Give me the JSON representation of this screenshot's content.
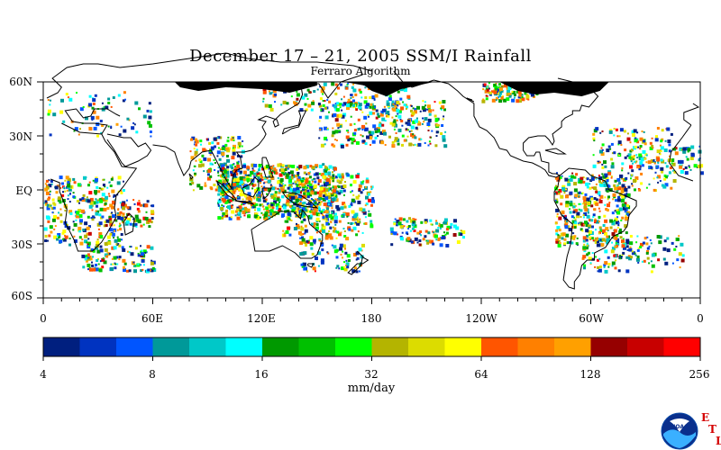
{
  "title": "December 17 – 21, 2005 SSM/I Rainfall",
  "subtitle": "Ferraro Algorithm",
  "latitude_labels": [
    "60N",
    "30N",
    "EQ",
    "30S",
    "60S"
  ],
  "longitude_labels": [
    "0",
    "60E",
    "120E",
    "180",
    "120W",
    "60W",
    "0"
  ],
  "colorbar": {
    "units": "mm/day",
    "tick_labels": [
      "4",
      "8",
      "16",
      "32",
      "64",
      "128",
      "256"
    ],
    "colors": [
      "#001f7f",
      "#0033c0",
      "#0055ff",
      "#009999",
      "#00c8c8",
      "#00ffff",
      "#009900",
      "#00c000",
      "#00ff00",
      "#b4b400",
      "#dcdc00",
      "#ffff00",
      "#ff5500",
      "#ff8000",
      "#ffa000",
      "#960000",
      "#c80000",
      "#ff0000"
    ]
  },
  "logo": {
    "name": "NOAA",
    "text": "NOAA",
    "side_letters": [
      "E",
      "T",
      "L"
    ]
  },
  "map_colors": {
    "sea_ice_no_data": "#000000",
    "coastline": "#000000",
    "background": "#ffffff"
  }
}
